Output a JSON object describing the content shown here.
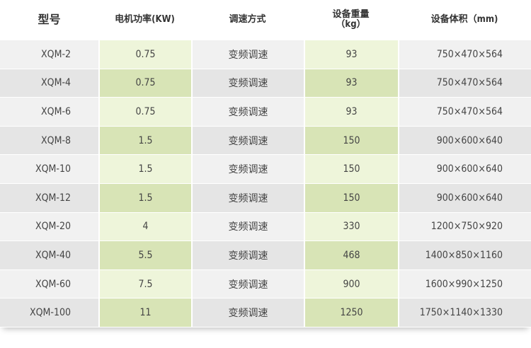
{
  "headers": {
    "model": "型号",
    "power": "电机功率(KW)",
    "speed": "调速方式",
    "weight": "设备重量",
    "weight_unit": "（kg）",
    "volume": "设备体积（mm)"
  },
  "rows": [
    {
      "model": "XQM-2",
      "power": "0.75",
      "speed": "变频调速",
      "weight": "93",
      "volume": "750×470×564"
    },
    {
      "model": "XQM-4",
      "power": "0.75",
      "speed": "变频调速",
      "weight": "93",
      "volume": "750×470×564"
    },
    {
      "model": "XQM-6",
      "power": "0.75",
      "speed": "变频调速",
      "weight": "93",
      "volume": "750×470×564"
    },
    {
      "model": "XQM-8",
      "power": "1.5",
      "speed": "变频调速",
      "weight": "150",
      "volume": "900×600×640"
    },
    {
      "model": "XQM-10",
      "power": "1.5",
      "speed": "变频调速",
      "weight": "150",
      "volume": "900×600×640"
    },
    {
      "model": "XQM-12",
      "power": "1.5",
      "speed": "变频调速",
      "weight": "150",
      "volume": "900×600×640"
    },
    {
      "model": "XQM-20",
      "power": "4",
      "speed": "变频调速",
      "weight": "330",
      "volume": "1200×750×920"
    },
    {
      "model": "XQM-40",
      "power": "5.5",
      "speed": "变频调速",
      "weight": "468",
      "volume": "1400×850×1160"
    },
    {
      "model": "XQM-60",
      "power": "7.5",
      "speed": "变频调速",
      "weight": "900",
      "volume": "1600×990×1250"
    },
    {
      "model": "XQM-100",
      "power": "11",
      "speed": "变频调速",
      "weight": "1250",
      "volume": "1750×1140×1330"
    }
  ]
}
